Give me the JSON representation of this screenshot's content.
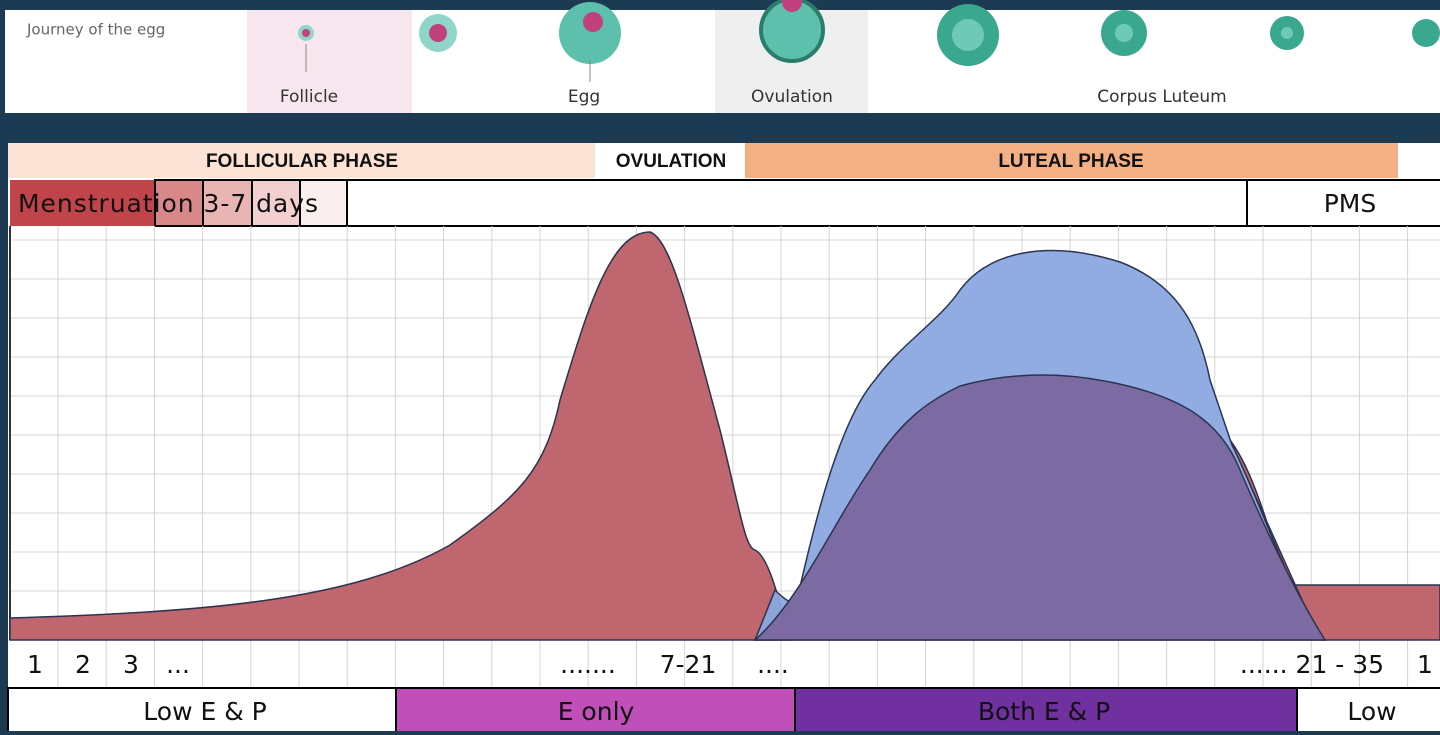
{
  "journey": {
    "title": "Journey of the egg",
    "stages": [
      "Follicle",
      "Egg",
      "Ovulation",
      "Corpus Luteum"
    ]
  },
  "phases": [
    "FOLLICULAR PHASE",
    "OVULATION",
    "LUTEAL PHASE"
  ],
  "menstruation": "Menstruation 3-7 days",
  "pms": "PMS",
  "days": [
    "1",
    "2",
    "3",
    "...",
    ".......",
    "7-21",
    "....",
    "...... 21 - 35",
    "1"
  ],
  "hormones": [
    "Low E & P",
    "E only",
    "Both E & P",
    "Low"
  ]
}
